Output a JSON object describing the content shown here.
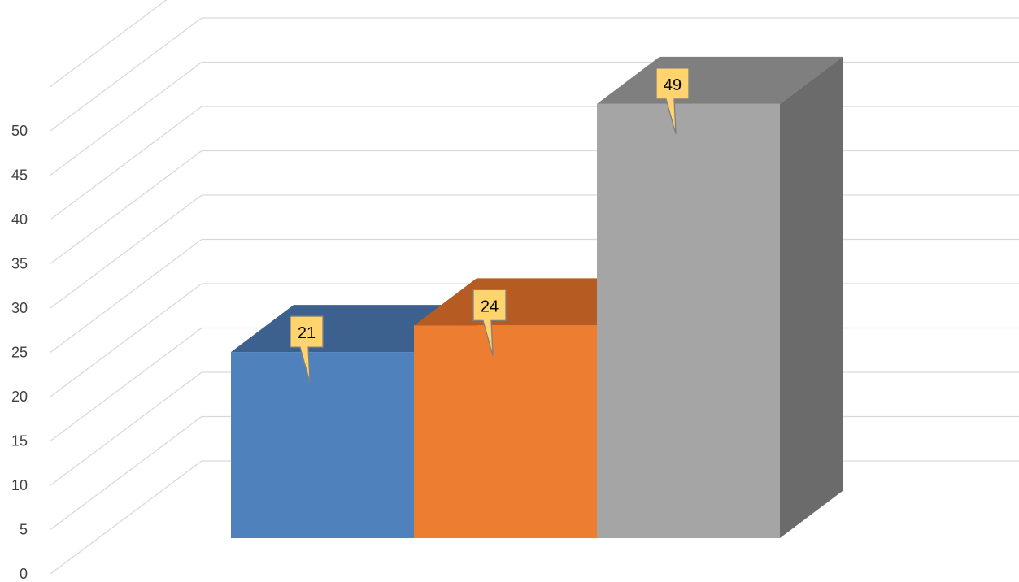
{
  "chart_data": {
    "type": "bar",
    "style": "3d-column",
    "title": "",
    "xlabel": "",
    "ylabel": "",
    "categories": [
      "",
      "",
      ""
    ],
    "values": [
      21,
      24,
      49
    ],
    "ylim": [
      0,
      50
    ],
    "ytick_step": 5,
    "yticks": [
      "0",
      "5",
      "10",
      "15",
      "20",
      "25",
      "30",
      "35",
      "40",
      "45",
      "50"
    ],
    "grid": true,
    "legend": "none",
    "colors": {
      "bars": [
        "#4F81BD",
        "#ED7D31",
        "#A5A5A5"
      ],
      "bar_tops": [
        "#3C618E",
        "#B65C22",
        "#7F7F7F"
      ],
      "bar_sides": [
        "#35557D",
        "#9E4F1D",
        "#6B6B6B"
      ],
      "grid": "#D9D9D9",
      "callout_fill": "#FFD36E",
      "callout_stroke": "#7F7F7F"
    }
  }
}
